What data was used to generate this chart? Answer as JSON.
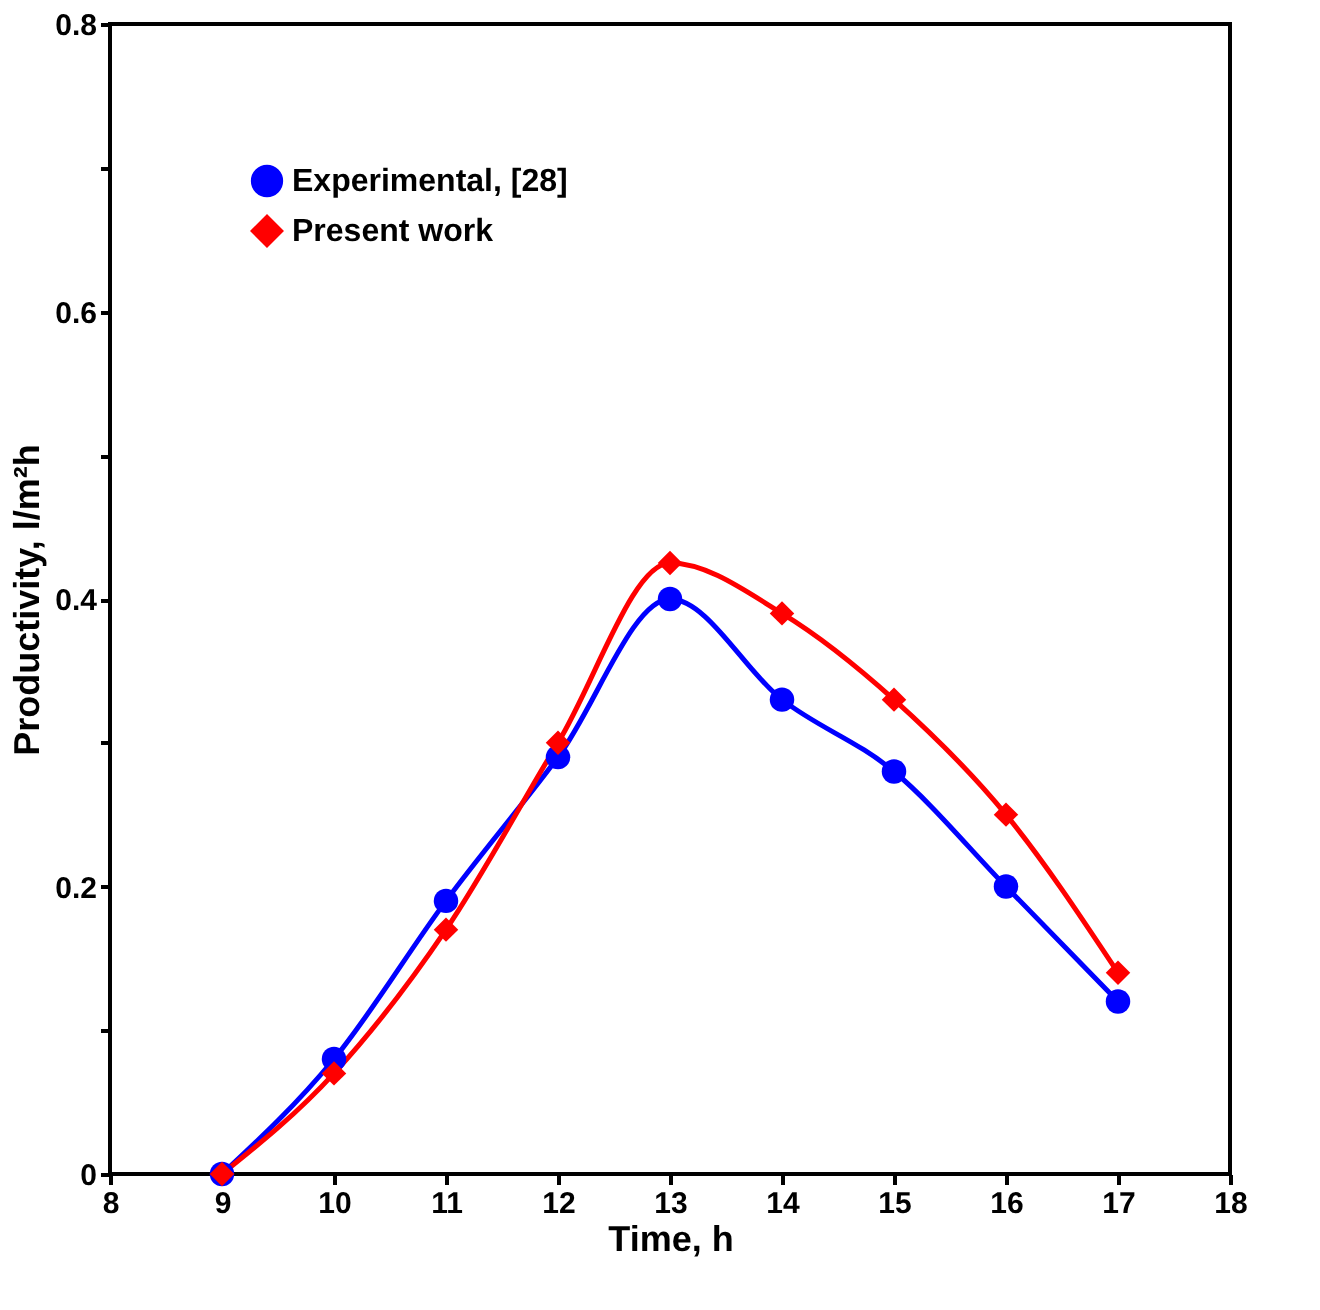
{
  "chart_data": {
    "type": "line",
    "xlabel": "Time, h",
    "ylabel": "Productivity, l/m²h",
    "x": [
      9,
      10,
      11,
      12,
      13,
      14,
      15,
      16,
      17
    ],
    "series": [
      {
        "name": "Experimental, [28]",
        "color": "#0000ff",
        "marker": "circle",
        "values": [
          0,
          0.08,
          0.19,
          0.29,
          0.4,
          0.33,
          0.28,
          0.2,
          0.12
        ]
      },
      {
        "name": "Present work",
        "color": "#ff0000",
        "marker": "diamond",
        "values": [
          0,
          0.07,
          0.17,
          0.3,
          0.425,
          0.39,
          0.33,
          0.25,
          0.14
        ]
      }
    ],
    "xlim": [
      8,
      18
    ],
    "xticks": [
      8,
      9,
      10,
      11,
      12,
      13,
      14,
      15,
      16,
      17,
      18
    ],
    "ylim": [
      0,
      0.8
    ],
    "yticks": [
      0,
      {
        "value": 0.1,
        "label": null
      },
      0.2,
      {
        "value": 0.3,
        "label": null
      },
      0.4,
      {
        "value": 0.5,
        "label": null
      },
      0.6,
      {
        "value": 0.7,
        "label": null
      },
      0.8
    ],
    "grid": false,
    "legend": "top left",
    "line_style": "solid"
  }
}
